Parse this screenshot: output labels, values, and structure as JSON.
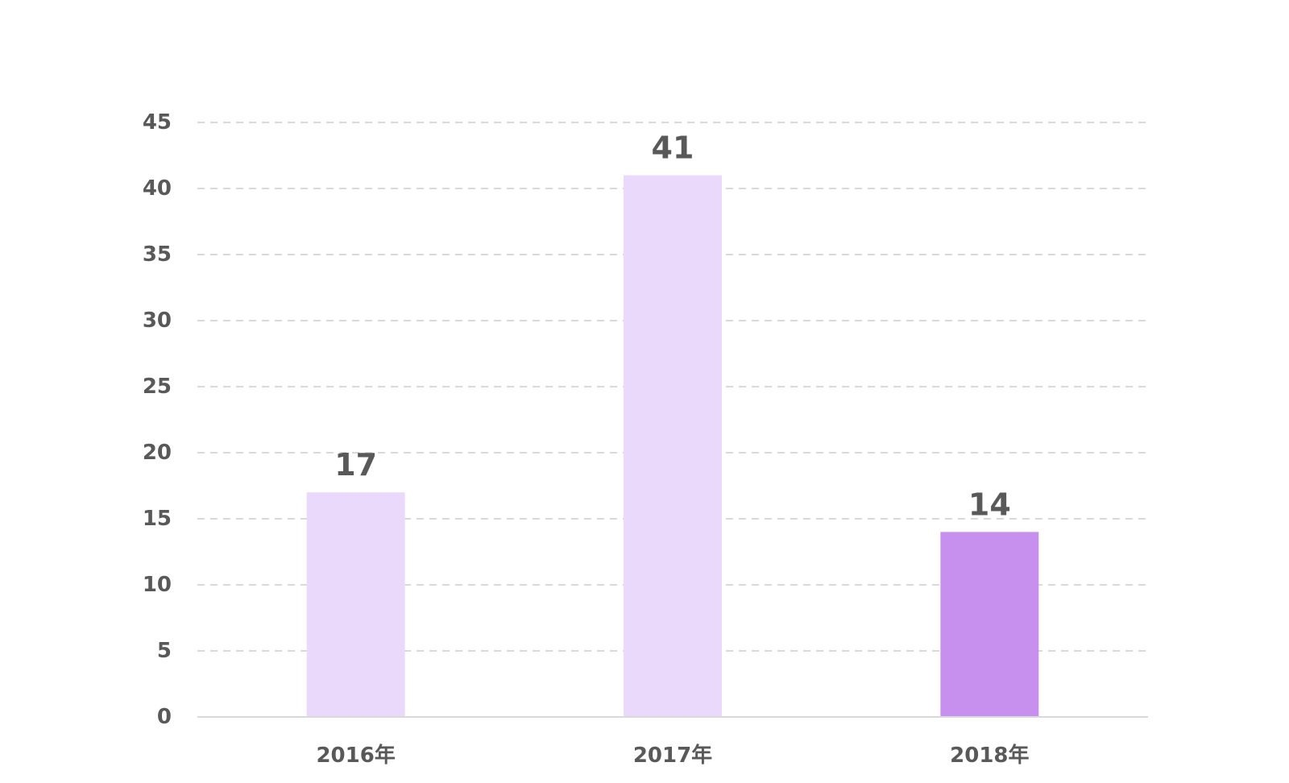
{
  "chart_data": {
    "type": "bar",
    "title": "",
    "xlabel": "",
    "ylabel": "",
    "categories": [
      "2016年",
      "2017年",
      "2018年"
    ],
    "values": [
      17,
      41,
      14
    ],
    "data_labels": [
      "17",
      "41",
      "14"
    ],
    "ylim": [
      0,
      45
    ],
    "yticks": [
      0,
      5,
      10,
      15,
      20,
      25,
      30,
      35,
      40,
      45
    ],
    "ytick_labels": [
      "0",
      "5",
      "10",
      "15",
      "20",
      "25",
      "30",
      "35",
      "40",
      "45"
    ],
    "grid": true,
    "legend": "none",
    "colors": {
      "bars": [
        "#EAD9FA",
        "#EAD9FA",
        "#C890EE"
      ],
      "grid": "#D9D9D9",
      "axis": "#D9D9D9",
      "text": "#595959"
    }
  }
}
